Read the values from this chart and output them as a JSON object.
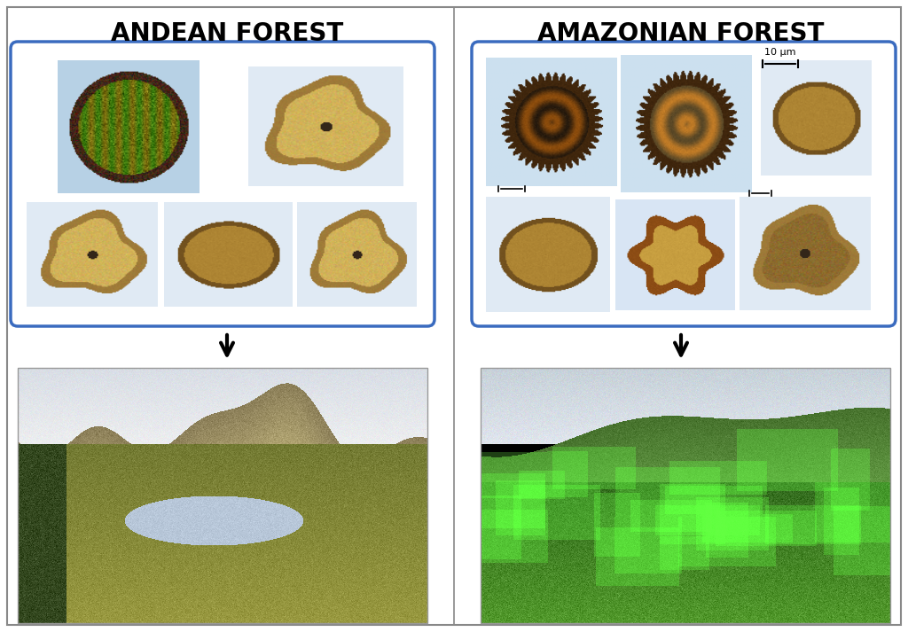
{
  "title_left": "ANDEAN FOREST",
  "title_right": "AMAZONIAN FOREST",
  "background_color": "#ffffff",
  "border_color": "#3a6bbf",
  "border_linewidth": 2.5,
  "arrow_color": "#000000",
  "title_fontsize": 20,
  "title_fontweight": "bold",
  "scale_bar_text": "10 μm",
  "fig_width": 10.24,
  "fig_height": 7.13,
  "outer_border_color": "#888888",
  "divider_color": "#888888"
}
